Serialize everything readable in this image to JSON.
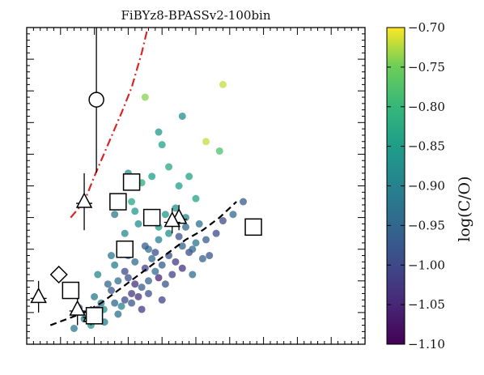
{
  "chart_data": {
    "type": "scatter",
    "title": "FiBYz8-BPASSv2-100bin",
    "xlabel": "",
    "ylabel": "",
    "xlim": [
      0,
      10
    ],
    "ylim": [
      0,
      10
    ],
    "grid": false,
    "legend": "none",
    "colorbar": {
      "label": "log(C/O)",
      "range": [
        -1.1,
        -0.7
      ],
      "ticks": [
        "−0.70",
        "−0.75",
        "−0.80",
        "−0.85",
        "−0.90",
        "−0.95",
        "−1.00",
        "−1.05",
        "−1.10"
      ],
      "tick_values": [
        -0.7,
        -0.75,
        -0.8,
        -0.85,
        -0.9,
        -0.95,
        -1.0,
        -1.05,
        -1.1
      ],
      "colormap": [
        "#440154",
        "#3b528b",
        "#21908c",
        "#5dc863",
        "#fde725"
      ]
    },
    "simulation_points": [
      [
        2.28,
        1.1,
        -0.87
      ],
      [
        1.55,
        1.15,
        -0.98
      ],
      [
        2.05,
        0.85,
        -0.89
      ],
      [
        2.6,
        1.3,
        -0.95
      ],
      [
        3.1,
        1.6,
        -1.02
      ],
      [
        2.9,
        1.4,
        -1.0
      ],
      [
        3.4,
        1.8,
        -0.97
      ],
      [
        3.0,
        2.1,
        -0.99
      ],
      [
        3.2,
        1.9,
        -1.03
      ],
      [
        3.6,
        2.0,
        -0.96
      ],
      [
        3.8,
        2.3,
        -0.94
      ],
      [
        2.7,
        2.0,
        -0.93
      ],
      [
        2.5,
        1.7,
        -0.98
      ],
      [
        2.2,
        1.3,
        -0.91
      ],
      [
        1.85,
        1.0,
        -0.88
      ],
      [
        2.8,
        1.2,
        -0.9
      ],
      [
        3.5,
        2.4,
        -1.01
      ],
      [
        4.0,
        2.5,
        -0.97
      ],
      [
        4.2,
        2.8,
        -0.99
      ],
      [
        3.7,
        2.7,
        -0.95
      ],
      [
        4.4,
        2.6,
        -1.02
      ],
      [
        4.6,
        3.1,
        -0.96
      ],
      [
        4.8,
        2.9,
        -1.0
      ],
      [
        5.0,
        3.2,
        -0.92
      ],
      [
        4.5,
        3.4,
        -0.99
      ],
      [
        3.9,
        2.1,
        -1.05
      ],
      [
        3.3,
        1.5,
        -1.03
      ],
      [
        3.1,
        1.3,
        -0.98
      ],
      [
        2.4,
        1.9,
        -0.95
      ],
      [
        2.1,
        2.2,
        -0.89
      ],
      [
        2.6,
        2.5,
        -0.91
      ],
      [
        2.9,
        2.3,
        -1.0
      ],
      [
        3.2,
        2.6,
        -0.94
      ],
      [
        3.6,
        3.0,
        -0.93
      ],
      [
        3.9,
        3.3,
        -0.9
      ],
      [
        4.2,
        3.5,
        -0.88
      ],
      [
        4.7,
        3.7,
        -0.95
      ],
      [
        5.3,
        3.3,
        -0.97
      ],
      [
        5.6,
        3.5,
        -1.0
      ],
      [
        4.3,
        2.2,
        -1.01
      ],
      [
        4.1,
        1.9,
        -0.98
      ],
      [
        3.4,
        1.1,
        -1.02
      ],
      [
        2.7,
        0.95,
        -0.93
      ],
      [
        2.3,
        0.7,
        -0.9
      ],
      [
        1.9,
        0.6,
        -0.86
      ],
      [
        2.9,
        3.5,
        -0.89
      ],
      [
        3.3,
        3.8,
        -0.88
      ],
      [
        3.7,
        3.9,
        -0.87
      ],
      [
        4.1,
        4.1,
        -0.86
      ],
      [
        3.9,
        3.7,
        -0.85
      ],
      [
        4.4,
        4.3,
        -0.87
      ],
      [
        5.0,
        4.6,
        -0.84
      ],
      [
        5.4,
        2.8,
        -0.98
      ],
      [
        3.0,
        2.8,
        -0.96
      ],
      [
        3.5,
        3.1,
        -0.97
      ],
      [
        2.5,
        2.8,
        -0.92
      ],
      [
        3.8,
        2.9,
        -0.99
      ],
      [
        4.6,
        2.4,
        -1.03
      ],
      [
        5.2,
        2.7,
        -0.96
      ],
      [
        4.9,
        2.2,
        -0.94
      ],
      [
        1.7,
        0.8,
        -0.9
      ],
      [
        2.0,
        1.5,
        -0.92
      ],
      [
        3.2,
        4.2,
        -0.86
      ],
      [
        4.8,
        5.3,
        -0.84
      ],
      [
        4.2,
        5.6,
        -0.83
      ],
      [
        5.7,
        6.1,
        -0.78
      ],
      [
        4.0,
        6.3,
        -0.84
      ],
      [
        3.9,
        6.7,
        -0.86
      ],
      [
        2.6,
        4.1,
        -0.92
      ],
      [
        3.1,
        4.5,
        -0.83
      ],
      [
        3.4,
        5.1,
        -0.82
      ],
      [
        3.0,
        5.4,
        -0.88
      ],
      [
        4.5,
        5.0,
        -0.85
      ],
      [
        5.3,
        6.4,
        -0.72
      ],
      [
        3.7,
        5.3,
        -0.85
      ],
      [
        4.7,
        4.0,
        -0.89
      ],
      [
        6.1,
        4.1,
        -0.95
      ],
      [
        6.4,
        4.5,
        -0.97
      ],
      [
        5.8,
        3.9,
        -1.0
      ],
      [
        4.9,
        3.0,
        -0.95
      ],
      [
        3.6,
        1.6,
        -0.99
      ],
      [
        4.0,
        1.4,
        -1.01
      ],
      [
        5.1,
        3.8,
        -0.93
      ],
      [
        3.5,
        7.8,
        -0.74
      ],
      [
        5.8,
        8.2,
        -0.72
      ],
      [
        4.6,
        7.2,
        -0.88
      ],
      [
        2.1,
        1.1,
        -1.05
      ],
      [
        1.4,
        0.5,
        -0.92
      ]
    ],
    "observations": {
      "circle": [
        [
          2.06,
          7.72,
          2.3
        ]
      ],
      "squares": [
        [
          3.1,
          5.12
        ],
        [
          2.7,
          4.5
        ],
        [
          3.7,
          4.0
        ],
        [
          2.9,
          3.0
        ],
        [
          6.7,
          3.7
        ],
        [
          1.3,
          1.7
        ],
        [
          2.0,
          0.9
        ]
      ],
      "triangles": [
        [
          0.35,
          1.5,
          0.5
        ],
        [
          1.7,
          4.5,
          0.9
        ],
        [
          1.5,
          1.1,
          0.5
        ],
        [
          4.5,
          4.0,
          0.4
        ],
        [
          4.3,
          3.9,
          0.4
        ],
        [
          1.9,
          0.9,
          0.3
        ]
      ],
      "diamonds": [
        [
          0.95,
          2.2
        ]
      ]
    },
    "dashdot_line": {
      "color": "#d62728",
      "x": [
        1.3,
        1.7,
        2.0,
        2.4,
        2.8,
        3.1,
        3.4,
        3.6
      ],
      "y": [
        4.0,
        4.5,
        5.3,
        6.3,
        7.3,
        8.1,
        9.2,
        10.1
      ]
    },
    "dashed_line": {
      "color": "#000000",
      "x": [
        0.7,
        1.2,
        1.7,
        2.2,
        2.7,
        3.2,
        3.7,
        4.2,
        4.7,
        5.2,
        5.7,
        6.2
      ],
      "y": [
        0.6,
        0.8,
        1.0,
        1.3,
        1.7,
        2.1,
        2.5,
        2.9,
        3.3,
        3.6,
        4.0,
        4.5
      ]
    }
  }
}
